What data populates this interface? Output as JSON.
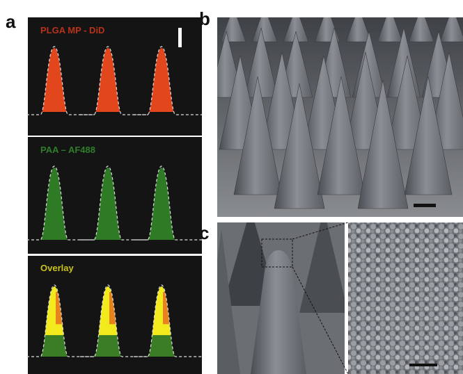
{
  "panels": [
    {
      "label": "a",
      "subpanels": [
        {
          "title": "PLGA MP - DiD"
        },
        {
          "title": "PAA – AF488"
        },
        {
          "title": "Overlay"
        }
      ]
    },
    {
      "label": "b"
    },
    {
      "label": "c"
    }
  ]
}
